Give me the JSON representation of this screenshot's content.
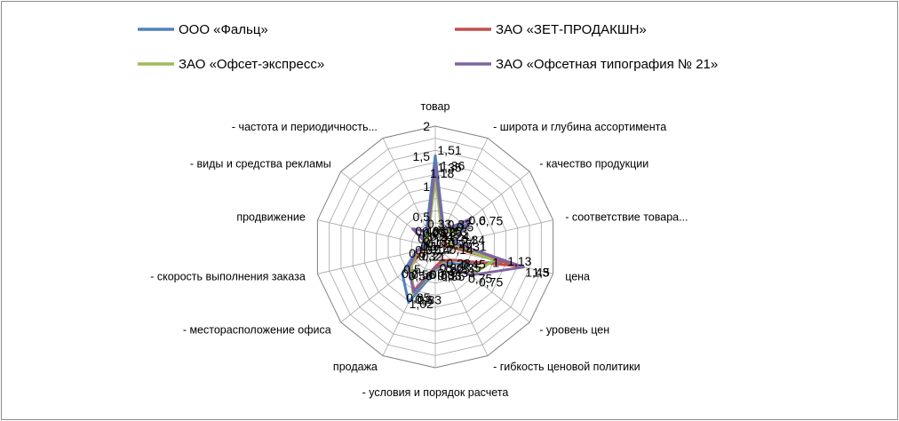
{
  "chart_data": {
    "type": "radar",
    "title": "",
    "legend_position": "top",
    "grid": true,
    "r_range": [
      0,
      2
    ],
    "r_ticks": [
      "0",
      "0,5",
      "1",
      "1,5",
      "2"
    ],
    "categories": [
      "товар",
      "- широта и глубина ассортимента",
      "- качество продукции",
      "- соответствие товара...",
      "цена",
      "- уровень цен",
      "- гибкость ценовой политики",
      "- условия и порядок расчета",
      "продажа",
      "- месторасположение офиса",
      "- скорость выполнения заказа",
      "продвижение",
      "- виды и средства рекламы",
      "- частота и периодичность..."
    ],
    "series": [
      {
        "name": "ООО «Фальц»",
        "color": "#4f81bd",
        "values": [
          1.51,
          0.32,
          0.6,
          0.34,
          1.13,
          0.45,
          0.28,
          0.4,
          1.02,
          0.7,
          0.32,
          0.18,
          0.25,
          0.33
        ],
        "labels": [
          "1,51",
          "0,32",
          "0,6",
          "0,34",
          "1,13",
          "0,45",
          "0,28",
          "0,4",
          "1,02",
          "0,7",
          "0,32",
          "0,18",
          "0,25",
          "0,33"
        ]
      },
      {
        "name": "ЗАО «ЗЕТ-ПРОДАКШН»",
        "color": "#c0504d",
        "values": [
          1.35,
          0.24,
          0.24,
          0.14,
          1.43,
          0.35,
          0.25,
          0.33,
          0.8,
          0.56,
          0.21,
          0.14,
          0.18,
          0.24
        ],
        "labels": [
          "1,35",
          "0,24",
          "0,24",
          "0,14",
          "1,43",
          "0,35",
          "0,25",
          "0,33",
          "0,8",
          "0,56",
          "0,21",
          "0,14",
          "0,18",
          "0,24"
        ]
      },
      {
        "name": "ЗАО «Офсет-экспресс»",
        "color": "#9bbb59",
        "values": [
          1.18,
          0.25,
          0.5,
          0.25,
          1.0,
          0.75,
          0.3,
          0.38,
          0.85,
          0.5,
          0.3,
          0.1,
          0.2,
          0.25
        ],
        "labels": [
          "1,18",
          "0,25",
          "0,5",
          "0,25",
          "1",
          "0,75",
          "0,3",
          "0,38",
          "0,85",
          "0,5",
          "0,3",
          "0,1",
          "0,2",
          "0,25"
        ]
      },
      {
        "name": "ЗАО «Офсетная типография № 21»",
        "color": "#8064a2",
        "values": [
          1.36,
          0.3,
          0.75,
          0.31,
          1.5,
          0.75,
          0.33,
          0.35,
          0.83,
          0.56,
          0.32,
          0.12,
          0.48,
          0.28
        ],
        "labels": [
          "1,36",
          "0,3",
          "0,75",
          "0,31",
          "1,5",
          "0,75",
          "0,33",
          "0,35",
          "0,83",
          "0,56",
          "0,32",
          "0,12",
          "0,48",
          "0,28"
        ]
      }
    ]
  }
}
